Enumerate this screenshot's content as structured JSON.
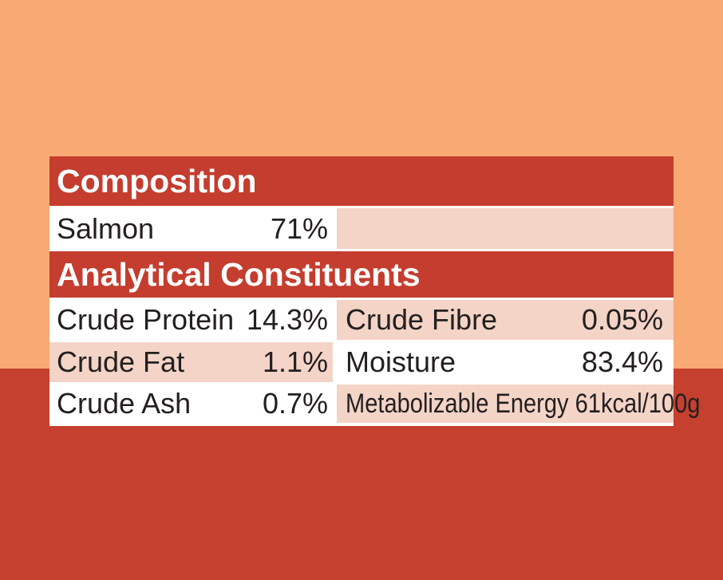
{
  "colors": {
    "background_top": "#F9A973",
    "background_bottom": "#C5402F",
    "header_red": "#C43D2E",
    "cell_pink": "#F3D4C6",
    "cell_white": "#FFFFFF",
    "header_text": "#FFFFFF",
    "body_text": "#231F20"
  },
  "label": {
    "composition": {
      "header": "Composition",
      "rows": [
        {
          "name": "Salmon",
          "value": "71%"
        }
      ]
    },
    "analytical": {
      "header": "Analytical Constituents",
      "rows": [
        {
          "left_name": "Crude Protein",
          "left_value": "14.3%",
          "right_name": "Crude Fibre",
          "right_value": "0.05%"
        },
        {
          "left_name": "Crude Fat",
          "left_value": "1.1%",
          "right_name": "Moisture",
          "right_value": "83.4%"
        },
        {
          "left_name": "Crude Ash",
          "left_value": "0.7%",
          "right_name": "Metabolizable Energy 61kcal/100g",
          "right_value": ""
        }
      ]
    }
  }
}
